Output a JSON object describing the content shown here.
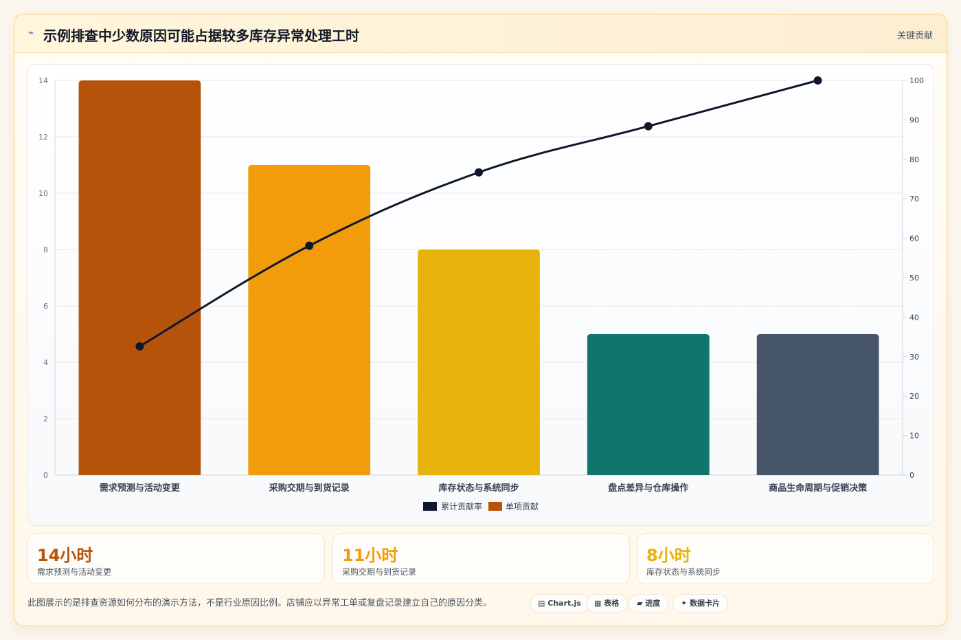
{
  "header": {
    "icon": "lightning-icon",
    "title": "示例排查中少数原因可能占据较多库存异常处理工时",
    "tag": "关键贡献"
  },
  "chart_data": {
    "type": "bar",
    "categories": [
      "需求预测与活动变更",
      "采购交期与到货记录",
      "库存状态与系统同步",
      "盘点差异与仓库操作",
      "商品生命周期与促销决策"
    ],
    "series": [
      {
        "name": "单项贡献",
        "type": "bar",
        "axis": "left",
        "values": [
          14,
          11,
          8,
          5,
          5
        ],
        "colors": [
          "#b45309",
          "#f39c0b",
          "#e6b30b",
          "#0f766e",
          "#475569"
        ]
      },
      {
        "name": "累计贡献率",
        "type": "line",
        "axis": "right",
        "values": [
          32.6,
          58.1,
          76.7,
          88.4,
          100
        ],
        "color": "#0f172a"
      }
    ],
    "y_left": {
      "min": 0,
      "max": 14,
      "ticks": [
        0,
        2,
        4,
        6,
        8,
        10,
        12,
        14
      ]
    },
    "y_right": {
      "min": 0,
      "max": 100,
      "ticks": [
        0,
        10,
        20,
        30,
        40,
        50,
        60,
        70,
        80,
        90,
        100
      ]
    },
    "legend": {
      "position": "bottom",
      "items": [
        "累计贡献率",
        "单项贡献"
      ]
    },
    "grid": true
  },
  "stats": [
    {
      "value": "14小时",
      "label": "需求预测与活动变更",
      "color": "#b45309"
    },
    {
      "value": "11小时",
      "label": "采购交期与到货记录",
      "color": "#f39c0b"
    },
    {
      "value": "8小时",
      "label": "库存状态与系统同步",
      "color": "#e6b30b"
    }
  ],
  "footnote": "此图展示的是排查资源如何分布的演示方法，不是行业原因比例。店铺应以异常工单或复盘记录建立自己的原因分类。",
  "chips": [
    {
      "icon": "chart-icon",
      "glyph": "▤",
      "label": "Chart.js"
    },
    {
      "icon": "table-icon",
      "glyph": "▦",
      "label": "表格"
    },
    {
      "icon": "progress-icon",
      "glyph": "▰",
      "label": "进度"
    },
    {
      "icon": "card-icon",
      "glyph": "✦",
      "label": "数据卡片"
    }
  ]
}
